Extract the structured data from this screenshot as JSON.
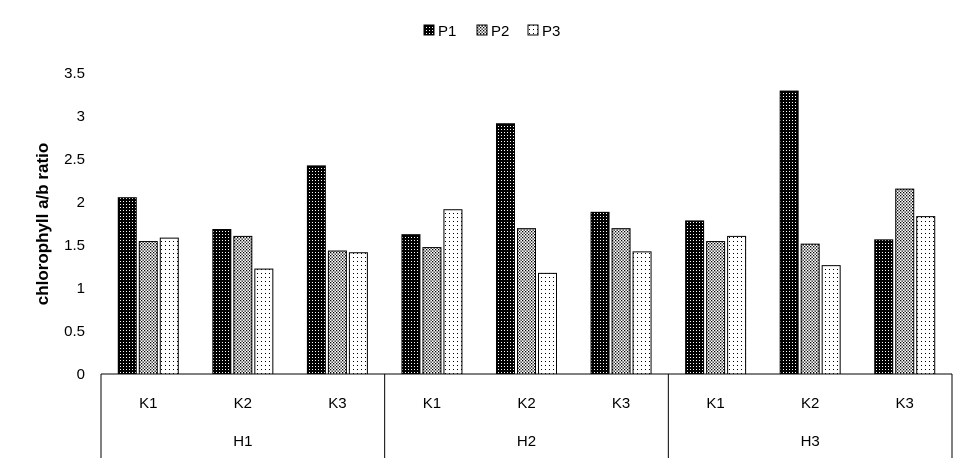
{
  "chart_data": {
    "type": "bar",
    "title": "",
    "xlabel": "",
    "ylabel": "chlorophyll a/b ratio",
    "ylim": [
      0,
      3.5
    ],
    "yticks": [
      "0",
      "0.5",
      "1",
      "1.5",
      "2",
      "2.5",
      "3",
      "3.5"
    ],
    "grid": false,
    "legend_position": "top-center",
    "groups": [
      "H1",
      "H2",
      "H3"
    ],
    "subcategories": [
      "K1",
      "K2",
      "K3"
    ],
    "categories": [
      "H1 K1",
      "H1 K2",
      "H1 K3",
      "H2 K1",
      "H2 K2",
      "H2 K3",
      "H3 K1",
      "H3 K2",
      "H3 K3"
    ],
    "series": [
      {
        "name": "P1",
        "pattern": "dense-dots",
        "values": [
          2.05,
          1.68,
          2.42,
          1.62,
          2.91,
          1.88,
          1.78,
          3.29,
          1.56
        ]
      },
      {
        "name": "P2",
        "pattern": "medium-dots",
        "values": [
          1.54,
          1.6,
          1.43,
          1.47,
          1.69,
          1.69,
          1.54,
          1.51,
          2.15
        ]
      },
      {
        "name": "P3",
        "pattern": "sparse-dots",
        "values": [
          1.58,
          1.22,
          1.41,
          1.91,
          1.17,
          1.42,
          1.6,
          1.26,
          1.83
        ]
      }
    ]
  }
}
